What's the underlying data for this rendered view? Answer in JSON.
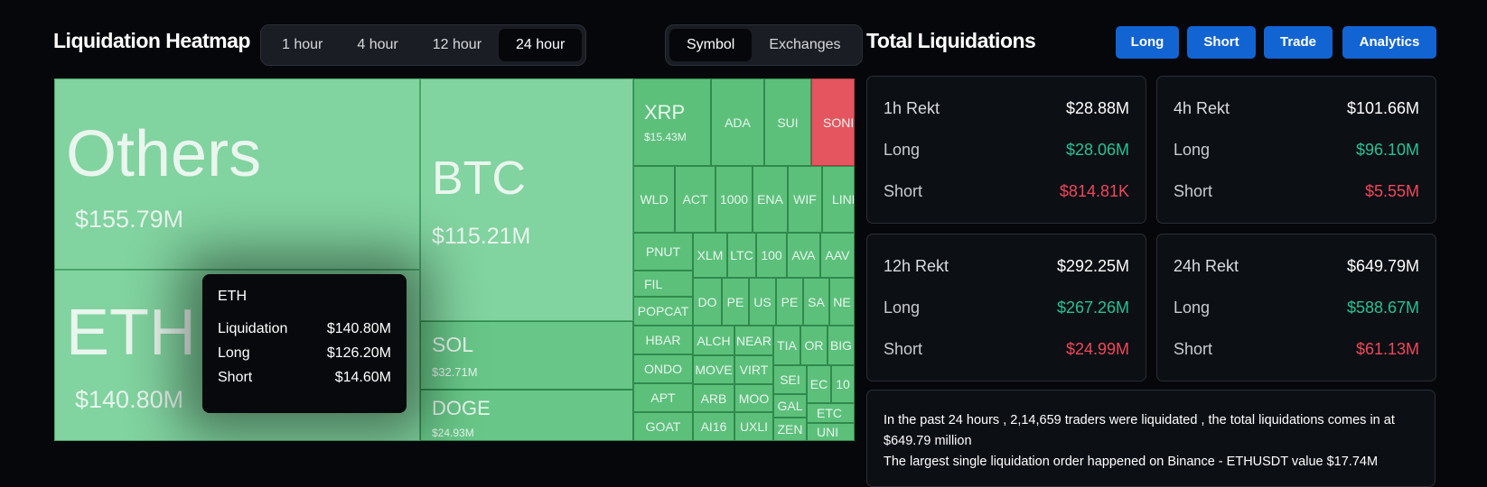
{
  "heatmap": {
    "title": "Liquidation Heatmap",
    "time_tabs": [
      "1 hour",
      "4 hour",
      "12 hour",
      "24 hour"
    ],
    "active_time_tab": "24 hour",
    "view_tabs": [
      "Symbol",
      "Exchanges"
    ],
    "active_view_tab": "Symbol",
    "tiles": {
      "others": {
        "symbol": "Others",
        "value": "$155.79M"
      },
      "btc": {
        "symbol": "BTC",
        "value": "$115.21M"
      },
      "eth": {
        "symbol": "ETH",
        "value": "$140.80M"
      },
      "sol": {
        "symbol": "SOL",
        "value": "$32.71M"
      },
      "doge": {
        "symbol": "DOGE",
        "value": "$24.93M"
      },
      "xrp": {
        "symbol": "XRP",
        "value": "$15.43M"
      },
      "small": [
        "ADA",
        "SUI",
        "SONIC",
        "WLD",
        "ACT",
        "1000",
        "ENA",
        "WIF",
        "LINK",
        "PNUT",
        "XLM",
        "LTC",
        "100",
        "AVA",
        "AAV",
        "FIL",
        "DO",
        "PE",
        "US",
        "PE",
        "SA",
        "NE",
        "POPCAT",
        "HBAR",
        "ALCH",
        "NEAR",
        "TIA",
        "OR",
        "BIG",
        "ONDO",
        "MOVE",
        "VIRT",
        "SEI",
        "EC",
        "10",
        "APT",
        "ARB",
        "MOO",
        "GAL",
        "ETC",
        "GOAT",
        "AI16",
        "UXLI",
        "ZEN",
        "UNI"
      ]
    },
    "tooltip": {
      "title": "ETH",
      "rows": [
        {
          "label": "Liquidation",
          "value": "$140.80M"
        },
        {
          "label": "Long",
          "value": "$126.20M"
        },
        {
          "label": "Short",
          "value": "$14.60M"
        }
      ]
    }
  },
  "totals": {
    "title": "Total Liquidations",
    "buttons": [
      "Long",
      "Short",
      "Trade",
      "Analytics"
    ],
    "cards": [
      {
        "label": "1h Rekt",
        "total": "$28.88M",
        "long_label": "Long",
        "long": "$28.06M",
        "short_label": "Short",
        "short": "$814.81K"
      },
      {
        "label": "4h Rekt",
        "total": "$101.66M",
        "long_label": "Long",
        "long": "$96.10M",
        "short_label": "Short",
        "short": "$5.55M"
      },
      {
        "label": "12h Rekt",
        "total": "$292.25M",
        "long_label": "Long",
        "long": "$267.26M",
        "short_label": "Short",
        "short": "$24.99M"
      },
      {
        "label": "24h Rekt",
        "total": "$649.79M",
        "long_label": "Long",
        "long": "$588.67M",
        "short_label": "Short",
        "short": "$61.13M"
      }
    ],
    "summary_line1": "In the past 24 hours , 2,14,659 traders were liquidated , the total liquidations comes in at $649.79 million",
    "summary_line2": "The largest single liquidation order happened on Binance - ETHUSDT value $17.74M"
  },
  "colors": {
    "accent": "#1264d3",
    "long": "#25c295",
    "short": "#f0475a",
    "tile_green": "#5cc07b",
    "tile_red": "#e5555f"
  }
}
